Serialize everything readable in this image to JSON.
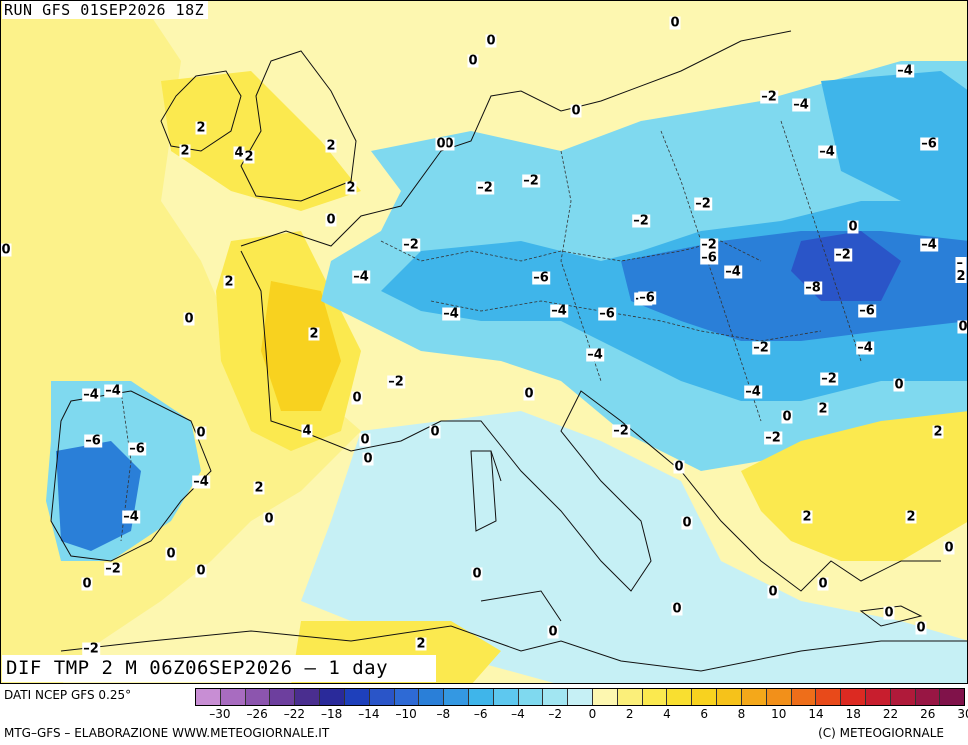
{
  "run_title": "RUN GFS 01SEP2026 18Z",
  "field_title": "DIF TMP 2 M 06Z06SEP2026 – 1 day",
  "source_label": "DATI NCEP GFS 0.25°",
  "footer_left": "MTG–GFS – ELABORAZIONE WWW.METEOGIORNALE.IT",
  "footer_right": "(C) METEOGIORNALE",
  "colors": {
    "warm_light": "#fdf7b0",
    "warm": "#fbe94f",
    "warm_strong": "#f8d21f",
    "cool_light": "#c6f0f5",
    "cool": "#7fd9ef",
    "cool_mid": "#3fb5ea",
    "cool_strong": "#2a7fd8",
    "cold": "#2a55c8"
  },
  "scale": {
    "colors": [
      "#c88ed4",
      "#a86cc0",
      "#8c55ae",
      "#6d3f9e",
      "#4a2e8f",
      "#2a2a9a",
      "#1e40bb",
      "#2a55c8",
      "#2e6ad5",
      "#2a7fd8",
      "#3498e2",
      "#3fb5ea",
      "#5ec8ef",
      "#7fd9ef",
      "#a2e6f2",
      "#c6f0f5",
      "#fdf7b0",
      "#fbef7a",
      "#fbe94f",
      "#f9df30",
      "#f8d21f",
      "#f6c21a",
      "#f4a81a",
      "#f2901a",
      "#ee6e1a",
      "#e84a1a",
      "#dc2a22",
      "#c81e2e",
      "#b01a3a",
      "#981644",
      "#80124a"
    ],
    "ticks": [
      "–30",
      "–26",
      "–22",
      "–18",
      "–14",
      "–10",
      "–8",
      "–6",
      "–4",
      "–2",
      "0",
      "2",
      "4",
      "6",
      "8",
      "10",
      "14",
      "18",
      "22",
      "26",
      "30"
    ]
  },
  "map_labels": [
    "0",
    "0",
    "0",
    "0",
    "0",
    "–4",
    "–2",
    "–4",
    "2",
    "2",
    "4",
    "2",
    "2",
    "0",
    "–2",
    "–2",
    "–4",
    "–6",
    "–2",
    "0",
    "2",
    "0",
    "–2",
    "–2",
    "–2",
    "–4",
    "–6",
    "0",
    "–2",
    "–4",
    "–4",
    "–6",
    "–8",
    "–6",
    "–4",
    "–6",
    "–6",
    "–4",
    "–4",
    "2",
    "0",
    "–4",
    "–4",
    "–2",
    "–6",
    "–6",
    "–4",
    "–4",
    "–2",
    "–2",
    "–4",
    "–6",
    "–2",
    "–4",
    "2",
    "0",
    "0",
    "–2",
    "0",
    "2",
    "–2",
    "–2",
    "0",
    "2",
    "4",
    "0",
    "0",
    "0",
    "0",
    "2",
    "0",
    "0",
    "2",
    "0",
    "0",
    "2",
    "0",
    "0",
    "0",
    "0",
    "–2",
    "0",
    "2",
    "2",
    "0",
    "0",
    "–2",
    "0",
    "0",
    "0",
    "0"
  ]
}
